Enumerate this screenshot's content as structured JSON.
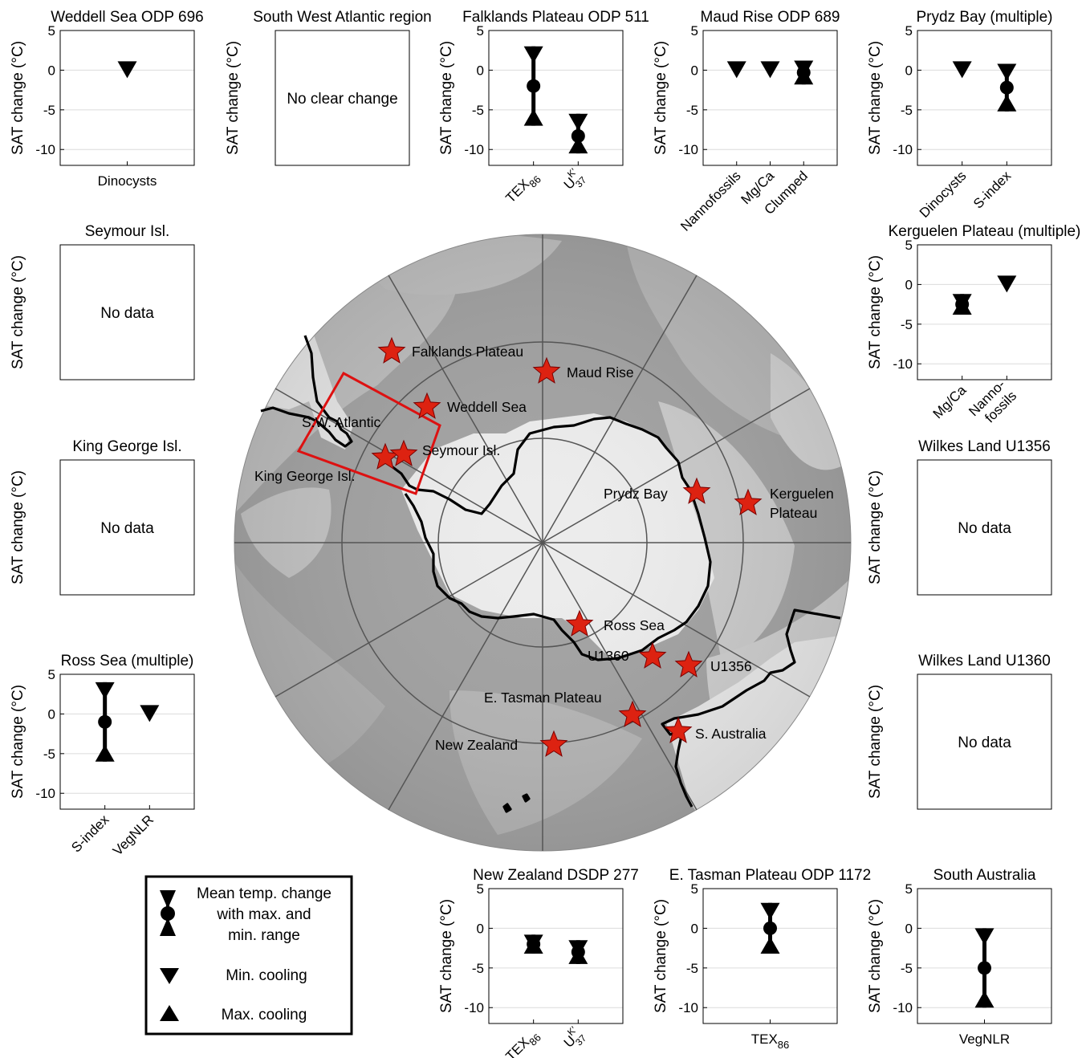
{
  "ylabel": "SAT change (°C)",
  "yticks": [
    "5",
    "0",
    "-5",
    "-10"
  ],
  "no_data_text": "No data",
  "no_change_text": "No clear change",
  "chart_data": [
    {
      "id": "weddell",
      "type": "range",
      "title": "Weddell Sea ODP 696",
      "ylabel": "SAT change (°C)",
      "ylim": [
        -12,
        5
      ],
      "categories": [
        "Dinocysts"
      ],
      "points": [
        {
          "min": 0
        }
      ]
    },
    {
      "id": "swatlantic",
      "type": "text",
      "title": "South West Atlantic region",
      "ylabel": "SAT change (°C)",
      "message": "No clear change"
    },
    {
      "id": "falklands",
      "type": "range",
      "title": "Falklands Plateau ODP 511",
      "ylabel": "SAT change (°C)",
      "ylim": [
        -12,
        5
      ],
      "categories": [
        "TEX86",
        "UK37"
      ],
      "points": [
        {
          "mean": -2,
          "max": 3,
          "min": -7
        },
        {
          "mean": -8.3,
          "max": -5.5,
          "min": -10.5
        }
      ]
    },
    {
      "id": "maud",
      "type": "range",
      "title": "Maud Rise ODP 689",
      "ylabel": "SAT change (°C)",
      "ylim": [
        -12,
        5
      ],
      "categories": [
        "Nannofossils",
        "Mg/Ca",
        "Clumped"
      ],
      "points": [
        {
          "min": 0
        },
        {
          "min": 0
        },
        {
          "mean": -0.3,
          "max": 1.2,
          "min": -1.8
        }
      ]
    },
    {
      "id": "prydz",
      "type": "range",
      "title": "Prydz Bay (multiple)",
      "ylabel": "SAT change (°C)",
      "ylim": [
        -12,
        5
      ],
      "categories": [
        "Dinocysts",
        "S-index"
      ],
      "points": [
        {
          "min": 0
        },
        {
          "mean": -2.2,
          "max": 0.8,
          "min": -5.2
        }
      ]
    },
    {
      "id": "kerguelen",
      "type": "range",
      "title": "Kerguelen Plateau (multiple)",
      "ylabel": "SAT change (°C)",
      "ylim": [
        -12,
        5
      ],
      "categories": [
        "Mg/Ca",
        "Nanno-\nfossils"
      ],
      "points": [
        {
          "mean": -2.5,
          "max": -1.2,
          "min": -3.8
        },
        {
          "min": 0
        }
      ]
    },
    {
      "id": "seymour",
      "type": "text",
      "title": "Seymour Isl.",
      "ylabel": "SAT change (°C)",
      "message": "No data"
    },
    {
      "id": "kinggeorge",
      "type": "text",
      "title": "King George Isl.",
      "ylabel": "SAT change (°C)",
      "message": "No data"
    },
    {
      "id": "wilkes1356",
      "type": "text",
      "title": "Wilkes Land U1356",
      "ylabel": "SAT change (°C)",
      "message": "No data"
    },
    {
      "id": "wilkes1360",
      "type": "text",
      "title": "Wilkes Land U1360",
      "ylabel": "SAT change (°C)",
      "message": "No data"
    },
    {
      "id": "ross",
      "type": "range",
      "title": "Ross Sea (multiple)",
      "ylabel": "SAT change (°C)",
      "ylim": [
        -12,
        5
      ],
      "categories": [
        "S-index",
        "VegNLR"
      ],
      "points": [
        {
          "mean": -1,
          "max": 4,
          "min": -6
        },
        {
          "min": 0
        }
      ]
    },
    {
      "id": "newzealand",
      "type": "range",
      "title": "New Zealand DSDP 277",
      "ylabel": "SAT change (°C)",
      "ylim": [
        -12,
        5
      ],
      "categories": [
        "TEX86",
        "UK37"
      ],
      "points": [
        {
          "mean": -2,
          "max": -0.8,
          "min": -3.2
        },
        {
          "mean": -3,
          "max": -1.5,
          "min": -4.5
        }
      ]
    },
    {
      "id": "tasman",
      "type": "range",
      "title": "E. Tasman Plateau ODP 1172",
      "ylabel": "SAT change (°C)",
      "ylim": [
        -12,
        5
      ],
      "categories": [
        "TEX86"
      ],
      "points": [
        {
          "mean": 0,
          "max": 3.2,
          "min": -3.2
        }
      ]
    },
    {
      "id": "saustralia",
      "type": "range",
      "title": "South Australia",
      "ylabel": "SAT change (°C)",
      "ylim": [
        -12,
        5
      ],
      "categories": [
        "VegNLR"
      ],
      "points": [
        {
          "mean": -5,
          "max": 0,
          "min": -10
        }
      ]
    }
  ],
  "map": {
    "sites": [
      "Falklands Plateau",
      "Maud Rise",
      "Weddell Sea",
      "S.W. Atlantic",
      "Seymour Isl.",
      "King George Isl.",
      "Prydz Bay",
      "Kerguelen",
      "Plateau",
      "Ross Sea",
      "U1360",
      "U1356",
      "E. Tasman Plateau",
      "S. Australia",
      "New Zealand"
    ],
    "marker_color": "#dd2211",
    "box_color": "#dd1111"
  },
  "legend": {
    "range_lines": [
      "Mean temp. change",
      "with max. and",
      "min. range"
    ],
    "min_label": "Min. cooling",
    "max_label": "Max. cooling"
  }
}
